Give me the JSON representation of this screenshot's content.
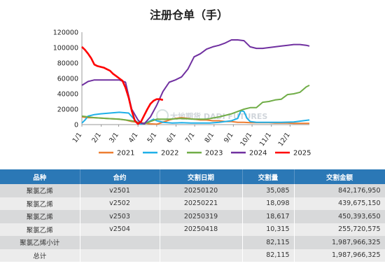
{
  "chart_data": {
    "type": "line",
    "title": "注册仓单（手）",
    "ylim": [
      0,
      120000
    ],
    "yticks": [
      0,
      20000,
      40000,
      60000,
      80000,
      100000,
      120000
    ],
    "yticklabels": [
      "0",
      "20000",
      "40000",
      "60000",
      "80000",
      "100000",
      "120000"
    ],
    "xlim": [
      0,
      365
    ],
    "xticks": [
      0,
      31,
      59,
      90,
      120,
      151,
      181,
      212,
      243,
      273,
      304,
      334
    ],
    "xticklabels": [
      "1/1",
      "2/1",
      "3/1",
      "4/1",
      "5/1",
      "6/1",
      "7/1",
      "8/1",
      "9/1",
      "10/1",
      "11/1",
      "12/1"
    ],
    "legend_position": "bottom",
    "watermark": "大地期货 DADI FUTURES",
    "series": [
      {
        "name": "2021",
        "color": "#ed7d31",
        "x": [
          0,
          10,
          20,
          40,
          60,
          70,
          80,
          90,
          100,
          110,
          120,
          130,
          140,
          150,
          160,
          170,
          180,
          190,
          200,
          210,
          220,
          230,
          240,
          250,
          260,
          270,
          280,
          290,
          300,
          310,
          320,
          330,
          340,
          350,
          365
        ],
        "y": [
          10000,
          9000,
          9000,
          8000,
          7000,
          6000,
          4000,
          3000,
          2000,
          1000,
          500,
          3000,
          6000,
          8000,
          9000,
          8000,
          7000,
          6000,
          6000,
          5000,
          5000,
          4000,
          4000,
          3000,
          3000,
          2500,
          2500,
          2500,
          2500,
          2000,
          2000,
          2000,
          1500,
          1500,
          1500
        ]
      },
      {
        "name": "2022",
        "color": "#1fb0e8",
        "x": [
          0,
          5,
          10,
          20,
          30,
          45,
          60,
          75,
          85,
          90,
          95,
          100,
          105,
          110,
          115,
          120,
          130,
          145,
          160,
          175,
          190,
          205,
          220,
          240,
          250,
          255,
          260,
          265,
          270,
          280,
          300,
          320,
          340,
          355,
          365
        ],
        "y": [
          2000,
          6000,
          11000,
          13000,
          14000,
          15000,
          16000,
          15000,
          6000,
          2000,
          500,
          2000,
          3000,
          5000,
          7000,
          5000,
          3000,
          2000,
          2500,
          2000,
          2000,
          2000,
          3000,
          5000,
          8000,
          18000,
          17000,
          8000,
          4000,
          3000,
          3000,
          3000,
          3500,
          5000,
          6000
        ]
      },
      {
        "name": "2023",
        "color": "#70ad47",
        "x": [
          0,
          20,
          40,
          60,
          80,
          90,
          100,
          110,
          120,
          140,
          160,
          180,
          200,
          220,
          240,
          260,
          270,
          280,
          290,
          300,
          310,
          320,
          330,
          340,
          350,
          360,
          365
        ],
        "y": [
          11000,
          9000,
          8000,
          7000,
          5000,
          3000,
          1000,
          4000,
          7000,
          7000,
          8000,
          7000,
          7000,
          10000,
          14000,
          20000,
          22000,
          22000,
          29000,
          30000,
          32000,
          33000,
          39000,
          40000,
          42000,
          49000,
          51000
        ]
      },
      {
        "name": "2024",
        "color": "#7030a0",
        "x": [
          0,
          10,
          20,
          40,
          60,
          70,
          80,
          90,
          95,
          100,
          110,
          120,
          130,
          140,
          150,
          160,
          170,
          180,
          190,
          200,
          210,
          220,
          230,
          240,
          250,
          260,
          270,
          280,
          290,
          300,
          310,
          320,
          330,
          340,
          350,
          360,
          365
        ],
        "y": [
          51000,
          56000,
          58000,
          58000,
          58000,
          55000,
          20000,
          6000,
          2000,
          1000,
          10000,
          25000,
          43000,
          55000,
          58000,
          62000,
          72000,
          88000,
          92000,
          98000,
          101000,
          103000,
          106000,
          110000,
          110000,
          109000,
          101000,
          99000,
          99000,
          100000,
          101000,
          102000,
          103000,
          104000,
          104000,
          103000,
          102000
        ]
      },
      {
        "name": "2025",
        "color": "#ff0000",
        "x": [
          0,
          5,
          10,
          15,
          20,
          25,
          30,
          35,
          40,
          45,
          50,
          55,
          60,
          65,
          70,
          75,
          80,
          85,
          90,
          95,
          100,
          105,
          110,
          115,
          120,
          125,
          130
        ],
        "y": [
          101000,
          97000,
          92000,
          86000,
          78000,
          76000,
          75000,
          74000,
          72000,
          70000,
          66000,
          63000,
          60000,
          57000,
          48000,
          35000,
          18000,
          5000,
          1000,
          4000,
          12000,
          20000,
          27000,
          31000,
          33000,
          33000,
          32000
        ]
      }
    ]
  },
  "table": {
    "headers": [
      "品种",
      "合约",
      "交割日期",
      "交割量",
      "交割金额"
    ],
    "rows": [
      [
        "聚氯乙烯",
        "v2501",
        "20250120",
        "35,085",
        "842,176,950"
      ],
      [
        "聚氯乙烯",
        "v2502",
        "20250221",
        "18,098",
        "439,675,150"
      ],
      [
        "聚氯乙烯",
        "v2503",
        "20250319",
        "18,617",
        "450,393,650"
      ],
      [
        "聚氯乙烯",
        "v2504",
        "20250418",
        "10,315",
        "255,720,575"
      ],
      [
        "聚氯乙烯小计",
        "",
        "",
        "82,115",
        "1,987,966,325"
      ],
      [
        "总计",
        "",
        "",
        "82,115",
        "1,987,966,325"
      ]
    ]
  }
}
